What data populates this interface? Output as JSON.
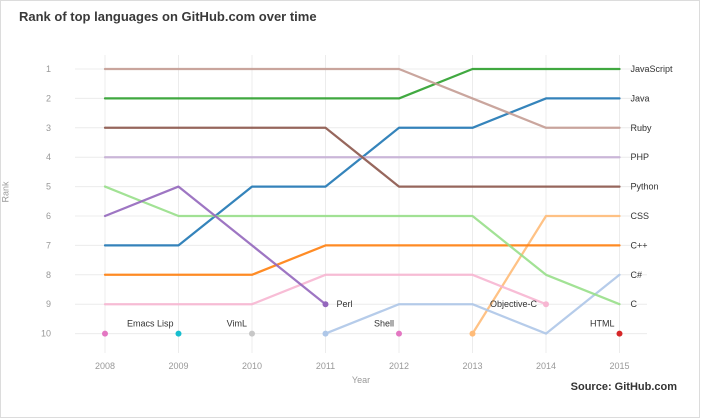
{
  "header": {
    "title": "Rank of top languages on GitHub.com over time"
  },
  "footer": {
    "source": "Source: GitHub.com"
  },
  "chart_data": {
    "type": "line",
    "title": "Rank of top languages on GitHub.com over time",
    "xlabel": "Year",
    "ylabel": "Rank",
    "x": [
      2008,
      2009,
      2010,
      2011,
      2012,
      2013,
      2014,
      2015
    ],
    "yticks": [
      1,
      2,
      3,
      4,
      5,
      6,
      7,
      8,
      9,
      10
    ],
    "ylim": [
      1,
      10
    ],
    "y_inverted": true,
    "grid": true,
    "series": [
      {
        "name": "JavaScript",
        "color": "#2ca02c",
        "ranks": [
          2,
          2,
          2,
          2,
          2,
          1,
          1,
          1
        ],
        "label": {
          "year": 2015,
          "side": "right"
        }
      },
      {
        "name": "Java",
        "color": "#1f77b4",
        "ranks": [
          7,
          7,
          5,
          5,
          3,
          3,
          2,
          2
        ],
        "label": {
          "year": 2015,
          "side": "right"
        }
      },
      {
        "name": "Ruby",
        "color": "#c49c94",
        "ranks": [
          1,
          1,
          1,
          1,
          1,
          2,
          3,
          3
        ],
        "label": {
          "year": 2015,
          "side": "right"
        }
      },
      {
        "name": "PHP",
        "color": "#c5b0d5",
        "ranks": [
          4,
          4,
          4,
          4,
          4,
          4,
          4,
          4
        ],
        "label": {
          "year": 2015,
          "side": "right"
        }
      },
      {
        "name": "Python",
        "color": "#8c564b",
        "ranks": [
          3,
          3,
          3,
          3,
          5,
          5,
          5,
          5
        ],
        "label": {
          "year": 2015,
          "side": "right"
        }
      },
      {
        "name": "CSS",
        "color": "#ffbb78",
        "ranks": [
          null,
          null,
          null,
          null,
          null,
          10,
          6,
          6
        ],
        "label": {
          "year": 2015,
          "side": "right"
        }
      },
      {
        "name": "C++",
        "color": "#ff7f0e",
        "ranks": [
          8,
          8,
          8,
          7,
          7,
          7,
          7,
          7
        ],
        "label": {
          "year": 2015,
          "side": "right"
        }
      },
      {
        "name": "C#",
        "color": "#aec7e8",
        "ranks": [
          null,
          null,
          null,
          10,
          9,
          9,
          10,
          8
        ],
        "label": {
          "year": 2015,
          "side": "right"
        }
      },
      {
        "name": "C",
        "color": "#98df8a",
        "ranks": [
          5,
          6,
          6,
          6,
          6,
          6,
          8,
          9
        ],
        "label": {
          "year": 2015,
          "side": "right"
        }
      },
      {
        "name": "Objective-C",
        "color": "#f7b6d2",
        "ranks": [
          9,
          9,
          9,
          8,
          8,
          8,
          9,
          null
        ],
        "label": {
          "year": 2014,
          "side": "left"
        }
      },
      {
        "name": "Perl",
        "color": "#9467bd",
        "ranks": [
          6,
          5,
          7,
          9,
          null,
          null,
          null,
          null
        ],
        "label": {
          "year": 2011,
          "side": "right"
        }
      },
      {
        "name": "Shell",
        "color": "#e377c2",
        "ranks": [
          10,
          null,
          null,
          null,
          10,
          null,
          null,
          null
        ],
        "label": {
          "year": 2012,
          "side": "upleft"
        }
      },
      {
        "name": "Emacs Lisp",
        "color": "#17becf",
        "ranks": [
          null,
          10,
          null,
          null,
          null,
          null,
          null,
          null
        ],
        "label": {
          "year": 2009,
          "side": "upleft"
        }
      },
      {
        "name": "VimL",
        "color": "#c7c7c7",
        "ranks": [
          null,
          null,
          10,
          null,
          null,
          null,
          null,
          null
        ],
        "label": {
          "year": 2010,
          "side": "upleft"
        }
      },
      {
        "name": "HTML",
        "color": "#d62728",
        "ranks": [
          null,
          null,
          null,
          null,
          null,
          null,
          null,
          10
        ],
        "label": {
          "year": 2015,
          "side": "upleft"
        }
      }
    ]
  }
}
